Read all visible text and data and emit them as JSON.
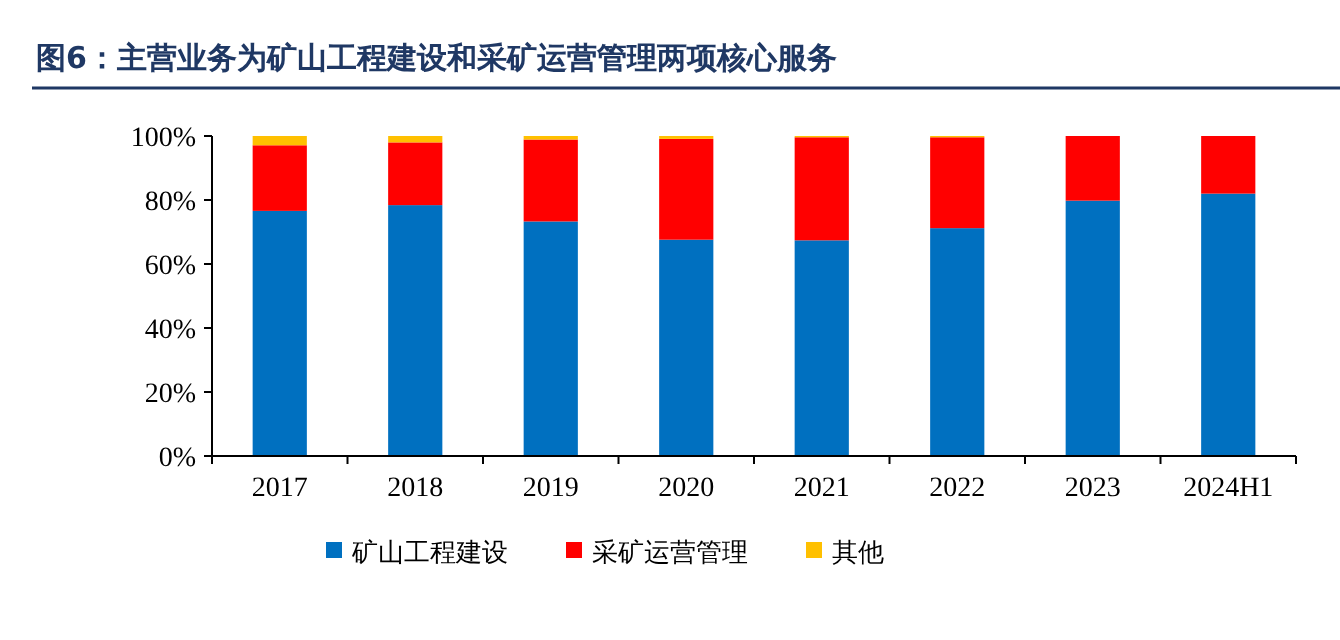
{
  "chart_data": {
    "type": "bar",
    "title": "图6：主营业务为矿山工程建设和采矿运营管理两项核心服务",
    "categories": [
      "2017",
      "2018",
      "2019",
      "2020",
      "2021",
      "2022",
      "2023",
      "2024H1"
    ],
    "stacked": true,
    "ylim": [
      0,
      100
    ],
    "yticks": [
      {
        "value": 0,
        "label": "0%"
      },
      {
        "value": 20,
        "label": "20%"
      },
      {
        "value": 40,
        "label": "40%"
      },
      {
        "value": 60,
        "label": "60%"
      },
      {
        "value": 80,
        "label": "80%"
      },
      {
        "value": 100,
        "label": "100%"
      }
    ],
    "grid": false,
    "legend": "bottom",
    "series": [
      {
        "name": "矿山工程建设",
        "color": "#0070c0",
        "values": [
          76.6,
          78.4,
          73.3,
          67.6,
          67.4,
          71.2,
          79.8,
          82.0
        ]
      },
      {
        "name": "采矿运营管理",
        "color": "#ff0000",
        "values": [
          20.5,
          19.6,
          25.6,
          31.5,
          32.2,
          28.4,
          20.2,
          18.0
        ]
      },
      {
        "name": "其他",
        "color": "#ffc000",
        "values": [
          2.9,
          2.0,
          1.1,
          0.9,
          0.4,
          0.4,
          0,
          0
        ]
      }
    ]
  }
}
